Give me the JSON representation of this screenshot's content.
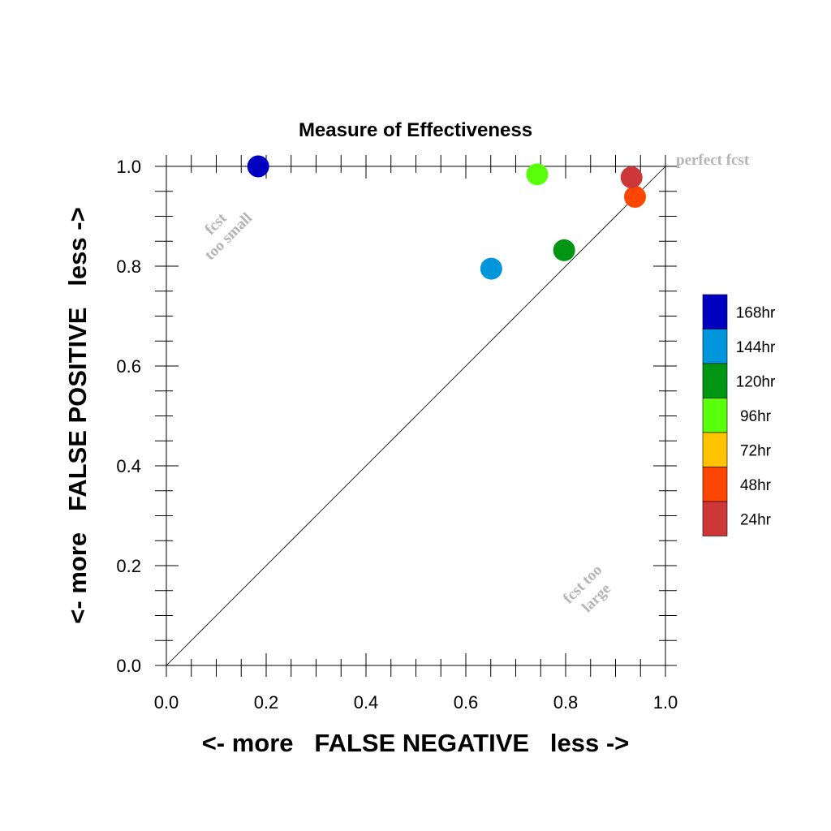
{
  "chart_data": {
    "type": "scatter",
    "title": "Measure of Effectiveness",
    "xlabel": "<- more   FALSE NEGATIVE   less ->",
    "ylabel": "<- more   FALSE POSITIVE   less ->",
    "xlim": [
      0.0,
      1.0
    ],
    "ylim": [
      0.0,
      1.0
    ],
    "xticks": [
      "0.0",
      "0.2",
      "0.4",
      "0.6",
      "0.8",
      "1.0"
    ],
    "yticks": [
      "0.0",
      "0.2",
      "0.4",
      "0.6",
      "0.8",
      "1.0"
    ],
    "grid": false,
    "diagonal_line": true,
    "annotations": {
      "perfect": "perfect fcst",
      "small_line1": "fcst",
      "small_line2": "too small",
      "large_line1": "fcst too",
      "large_line2": "large"
    },
    "legend_position": "right",
    "series": [
      {
        "name": "168hr",
        "color": "#0000c0",
        "x": 0.184,
        "y": 1.0
      },
      {
        "name": "144hr",
        "color": "#0096dc",
        "x": 0.651,
        "y": 0.795
      },
      {
        "name": "120hr",
        "color": "#009614",
        "x": 0.797,
        "y": 0.832
      },
      {
        "name": "96hr",
        "color": "#5aff0a",
        "x": 0.743,
        "y": 0.984
      },
      {
        "name": "72hr",
        "color": "#ffc300"
      },
      {
        "name": "48hr",
        "color": "#ff4600",
        "x": 0.939,
        "y": 0.939
      },
      {
        "name": "24hr",
        "color": "#cd3737",
        "x": 0.932,
        "y": 0.978
      }
    ]
  }
}
